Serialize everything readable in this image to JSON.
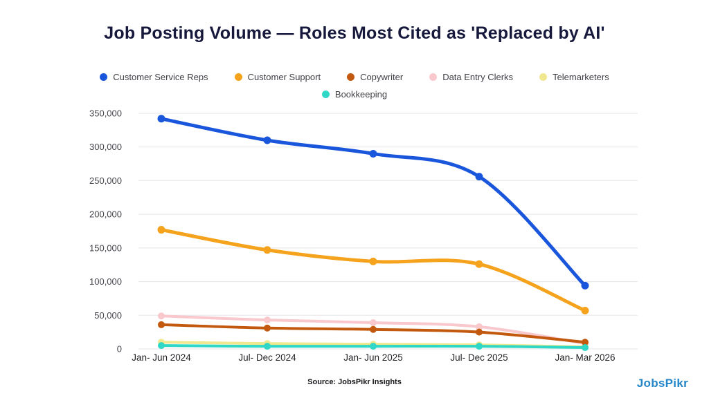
{
  "title": "Job Posting Volume — Roles Most Cited as 'Replaced by AI'",
  "source_note": "Source: JobsPikr Insights",
  "logo_text": "JobsPikr",
  "colors": {
    "title_text": "#16193B",
    "logo_blue": "#2386C8",
    "gridline": "#EAEAEE",
    "ytick_text": "#45454D",
    "xtick_text": "#232327"
  },
  "chart_data": {
    "type": "line",
    "categories": [
      "Jan- Jun 2024",
      "Jul- Dec 2024",
      "Jan- Jun 2025",
      "Jul- Dec 2025",
      "Jan- Mar 2026"
    ],
    "series": [
      {
        "name": "Customer Service Reps",
        "color": "#1A56DB",
        "values": [
          342000,
          310000,
          290000,
          256000,
          94000
        ]
      },
      {
        "name": "Customer Support",
        "color": "#F5A21C",
        "values": [
          177000,
          147000,
          130000,
          126000,
          57000
        ]
      },
      {
        "name": "Copywriter",
        "color": "#C2590E",
        "values": [
          36000,
          31000,
          29000,
          25000,
          10000
        ]
      },
      {
        "name": "Data Entry Clerks",
        "color": "#F8C8CD",
        "values": [
          49000,
          43000,
          39000,
          33000,
          8000
        ]
      },
      {
        "name": "Telemarketers",
        "color": "#EFE88E",
        "values": [
          10000,
          8000,
          7000,
          6000,
          3000
        ]
      },
      {
        "name": "Bookkeeping",
        "color": "#2FD7C6",
        "values": [
          5000,
          4000,
          4000,
          4000,
          2000
        ]
      }
    ],
    "ylim": [
      0,
      350000
    ],
    "ytick_step": 50000,
    "grid": true,
    "legend_position": "top",
    "legend_rows": [
      [
        0,
        1,
        2,
        3,
        4
      ],
      [
        5
      ]
    ],
    "draw_order": [
      3,
      4,
      2,
      5,
      1,
      0
    ]
  }
}
